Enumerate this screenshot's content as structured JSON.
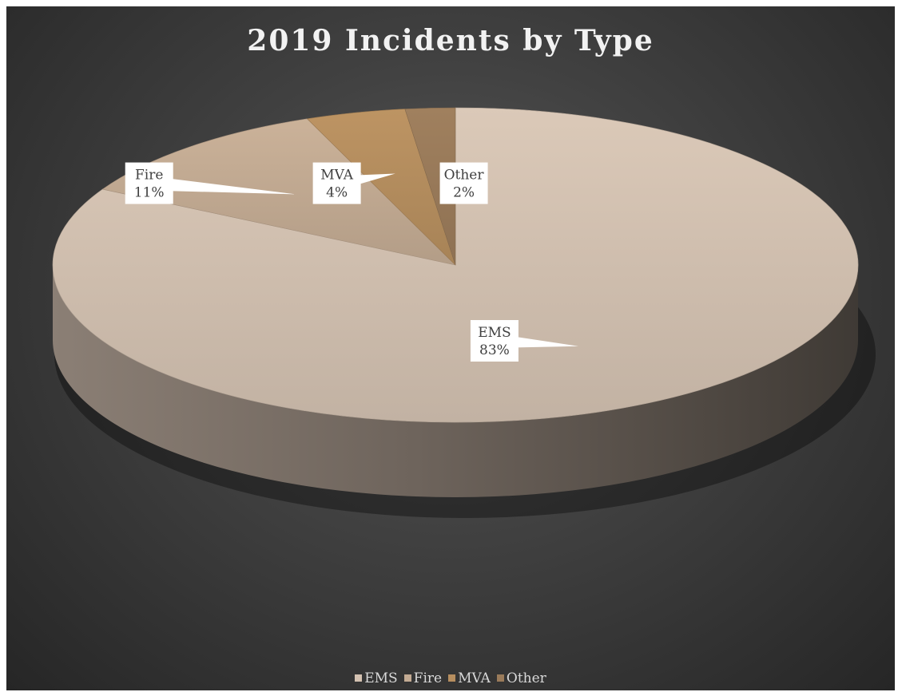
{
  "chart_data": {
    "type": "pie",
    "title": "2019 Incidents by Type",
    "categories": [
      "EMS",
      "Fire",
      "MVA",
      "Other"
    ],
    "values": [
      83,
      11,
      4,
      2
    ],
    "data_labels": [
      {
        "name": "EMS",
        "percent": "83%"
      },
      {
        "name": "Fire",
        "percent": "11%"
      },
      {
        "name": "MVA",
        "percent": "4%"
      },
      {
        "name": "Other",
        "percent": "2%"
      }
    ],
    "colors": {
      "EMS": "#d3c1b1",
      "Fire": "#c3ab93",
      "MVA": "#b68e5f",
      "Other": "#9a7b5a"
    },
    "style": "3d-pie",
    "legend_position": "bottom"
  }
}
